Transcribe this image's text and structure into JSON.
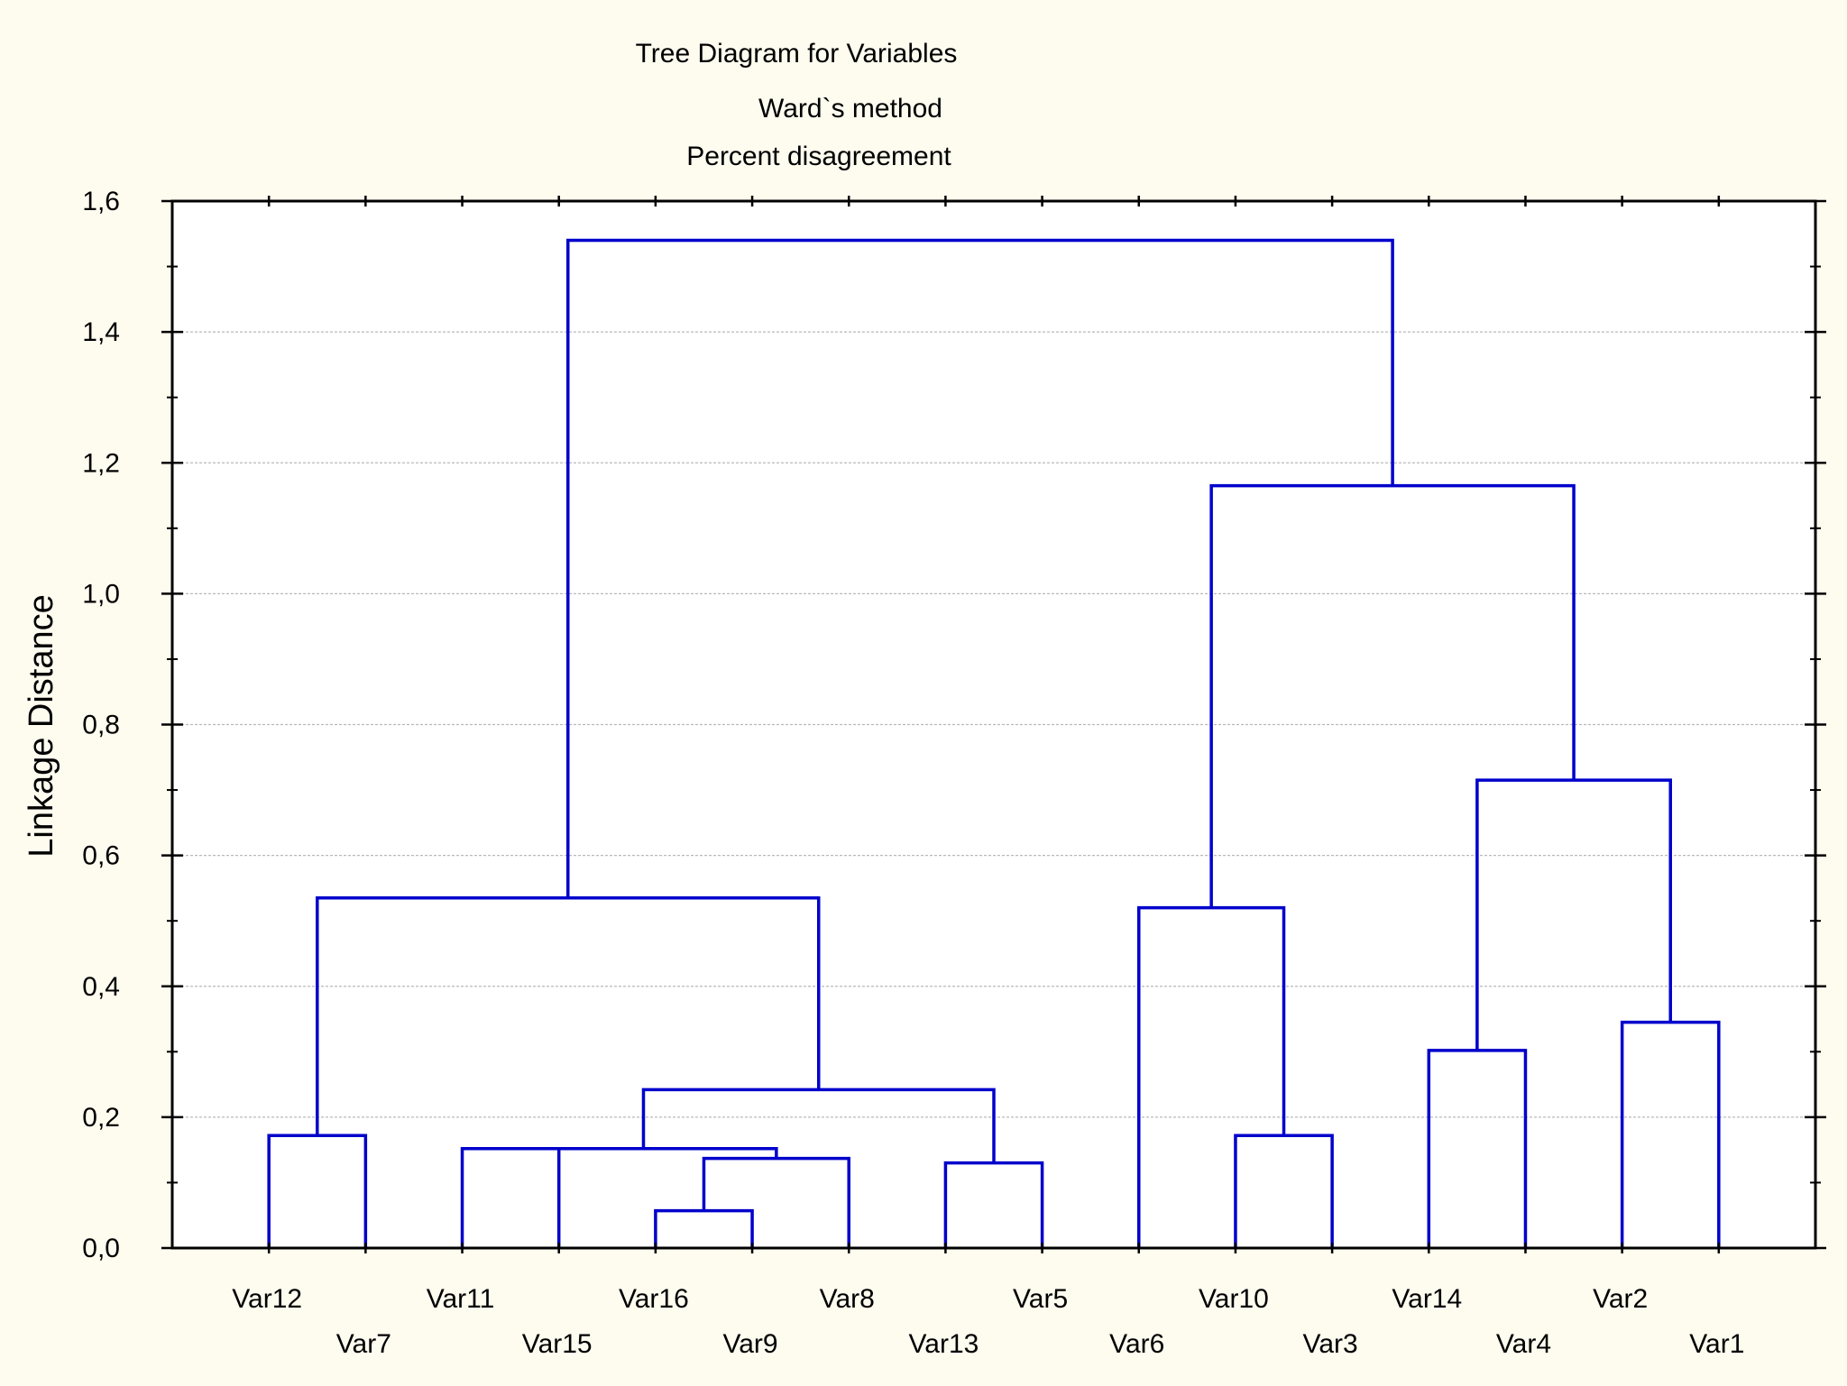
{
  "chart_data": {
    "type": "dendrogram",
    "title_lines": [
      "Tree Diagram for  Variables",
      "Ward`s method",
      "Percent disagreement"
    ],
    "ylabel": "Linkage Distance",
    "xlabel": "",
    "ylim": [
      0,
      1.6
    ],
    "yticks": [
      0.0,
      0.2,
      0.4,
      0.6,
      0.8,
      1.0,
      1.2,
      1.4,
      1.6
    ],
    "ytick_labels": [
      "0,0",
      "0,2",
      "0,4",
      "0,6",
      "0,8",
      "1,0",
      "1,2",
      "1,4",
      "1,6"
    ],
    "grid": true,
    "leaf_order": [
      "Var12",
      "Var7",
      "Var11",
      "Var15",
      "Var16",
      "Var9",
      "Var8",
      "Var13",
      "Var5",
      "Var6",
      "Var10",
      "Var3",
      "Var14",
      "Var4",
      "Var2",
      "Var1"
    ],
    "merges": [
      {
        "left": "Var16",
        "right": "Var9",
        "height": 0.057
      },
      {
        "left": "Var12",
        "right": "Var7",
        "height": 0.172
      },
      {
        "left": "Var13",
        "right": "Var5",
        "height": 0.13
      },
      {
        "left": "Var16,Var9",
        "right": "Var8",
        "height": 0.137
      },
      {
        "left": "Var11",
        "right": "Var15",
        "height": 0.152
      },
      {
        "left": "Var11,Var15",
        "right": "Var16,Var9,Var8",
        "height": 0.152
      },
      {
        "left": "Var11,Var15,Var16,Var9,Var8",
        "right": "Var13,Var5",
        "height": 0.242
      },
      {
        "left": "Var12,Var7",
        "right": "Var11,Var15,Var16,Var9,Var8,Var13,Var5",
        "height": 0.535
      },
      {
        "left": "Var10",
        "right": "Var3",
        "height": 0.172
      },
      {
        "left": "Var6",
        "right": "Var10,Var3",
        "height": 0.52
      },
      {
        "left": "Var14",
        "right": "Var4",
        "height": 0.302
      },
      {
        "left": "Var2",
        "right": "Var1",
        "height": 0.345
      },
      {
        "left": "Var14,Var4",
        "right": "Var2,Var1",
        "height": 0.715
      },
      {
        "left": "Var6,Var10,Var3",
        "right": "Var14,Var4,Var2,Var1",
        "height": 1.165
      },
      {
        "left": "Var12,Var7,Var11,Var15,Var16,Var9,Var8,Var13,Var5",
        "right": "Var6,Var10,Var3,Var14,Var4,Var2,Var1",
        "height": 1.54
      }
    ],
    "link_color": "#0000CC",
    "background": "#FEFBEF",
    "plot_background": "#FFFFFF"
  }
}
